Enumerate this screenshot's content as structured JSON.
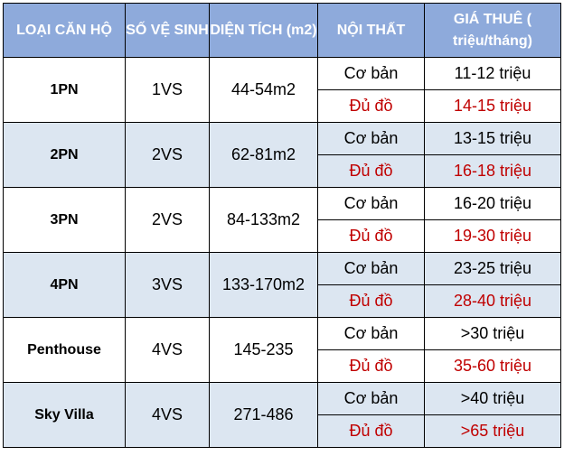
{
  "table": {
    "header": [
      "LOẠI CĂN HỘ",
      "SỐ VỆ SINH",
      "DIỆN TÍCH (m2)",
      "NỘI THẤT",
      "GIÁ THUÊ ( triệu/tháng)"
    ],
    "rows": [
      {
        "type": "1PN",
        "wc": "1VS",
        "area": "44-54m2",
        "options": [
          {
            "furniture": "Cơ bản",
            "price": "11-12 triệu"
          },
          {
            "furniture": "Đủ đồ",
            "price": "14-15 triệu"
          }
        ]
      },
      {
        "type": "2PN",
        "wc": "2VS",
        "area": "62-81m2",
        "options": [
          {
            "furniture": "Cơ bản",
            "price": "13-15 triệu"
          },
          {
            "furniture": "Đủ đồ",
            "price": "16-18 triệu"
          }
        ]
      },
      {
        "type": "3PN",
        "wc": "2VS",
        "area": "84-133m2",
        "options": [
          {
            "furniture": "Cơ bản",
            "price": "16-20 triệu"
          },
          {
            "furniture": "Đủ đồ",
            "price": "19-30 triệu"
          }
        ]
      },
      {
        "type": "4PN",
        "wc": "3VS",
        "area": "133-170m2",
        "options": [
          {
            "furniture": "Cơ bản",
            "price": "23-25 triệu"
          },
          {
            "furniture": "Đủ đồ",
            "price": "28-40 triệu"
          }
        ]
      },
      {
        "type": "Penthouse",
        "wc": "4VS",
        "area": "145-235",
        "options": [
          {
            "furniture": "Cơ bản",
            "price": ">30 triệu"
          },
          {
            "furniture": "Đủ đồ",
            "price": "35-60 triệu"
          }
        ]
      },
      {
        "type": "Sky Villa",
        "wc": "4VS",
        "area": "271-486",
        "options": [
          {
            "furniture": "Cơ bản",
            "price": ">40 triệu"
          },
          {
            "furniture": "Đủ đồ",
            "price": ">65 triệu"
          }
        ]
      }
    ]
  }
}
